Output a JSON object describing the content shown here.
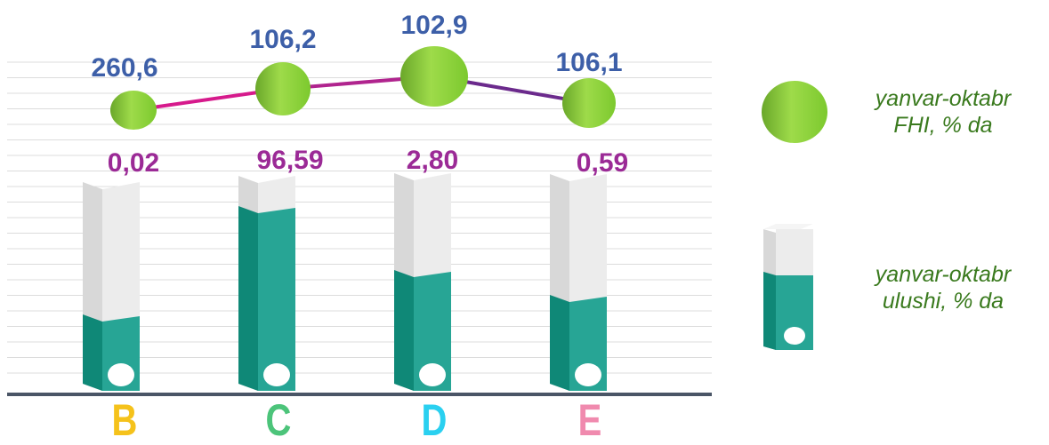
{
  "chart_data": {
    "type": "bar",
    "categories": [
      "B",
      "C",
      "D",
      "E"
    ],
    "category_colors": [
      "#f5c21b",
      "#4cc47a",
      "#2ad0f0",
      "#f08aae"
    ],
    "series": [
      {
        "name_lines": [
          "yanvar-oktabr",
          "FHI, % da"
        ],
        "kind": "line-bubble",
        "values": [
          260.6,
          106.2,
          102.9,
          106.1
        ],
        "labels": [
          "260,6",
          "106,2",
          "102,9",
          "106,1"
        ],
        "label_color": "#3d5fa8",
        "line_colors": [
          "#d61a8c",
          "#b0248e",
          "#6b2a8c"
        ],
        "bubble_color": "#8cd43a"
      },
      {
        "name_lines": [
          "yanvar-oktabr",
          "ulushi, % da"
        ],
        "kind": "bar",
        "values": [
          0.02,
          96.59,
          2.8,
          0.59
        ],
        "labels": [
          "0,02",
          "96,59",
          "2,80",
          "0,59"
        ],
        "label_color": "#9b2a96",
        "fill_color": "#27a595",
        "empty_color": "#ececec"
      }
    ],
    "grid": true,
    "legend_position": "right"
  }
}
